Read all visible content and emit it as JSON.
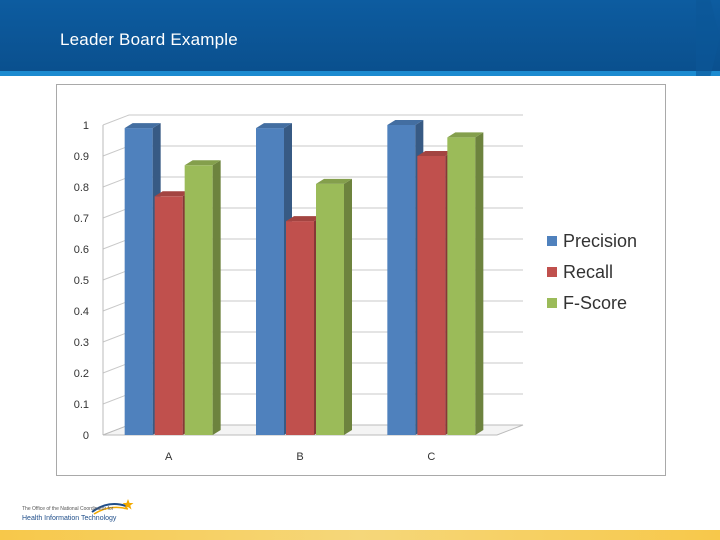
{
  "slide": {
    "title": "Leader Board Example"
  },
  "logo": {
    "line1": "The Office of the National Coordinator for",
    "line2": "Health Information Technology"
  },
  "colors": {
    "header": "#0a4f8d",
    "accent_rule": "#1c8bd0",
    "footer": "#f7c84a",
    "precision": "#4f81bd",
    "recall": "#c0504d",
    "fscore": "#9bbb59"
  },
  "chart_data": {
    "type": "bar",
    "categories": [
      "A",
      "B",
      "C"
    ],
    "series": [
      {
        "name": "Precision",
        "values": [
          0.99,
          0.99,
          1.0
        ],
        "color": "#4f81bd"
      },
      {
        "name": "Recall",
        "values": [
          0.77,
          0.69,
          0.9
        ],
        "color": "#c0504d"
      },
      {
        "name": "F-Score",
        "values": [
          0.87,
          0.81,
          0.96
        ],
        "color": "#9bbb59"
      }
    ],
    "yticks": [
      "0",
      "0.1",
      "0.2",
      "0.3",
      "0.4",
      "0.5",
      "0.6",
      "0.7",
      "0.8",
      "0.9",
      "1"
    ],
    "ylim": [
      0,
      1
    ],
    "grid": true,
    "legend": "right",
    "style": "3d-clustered-column"
  }
}
